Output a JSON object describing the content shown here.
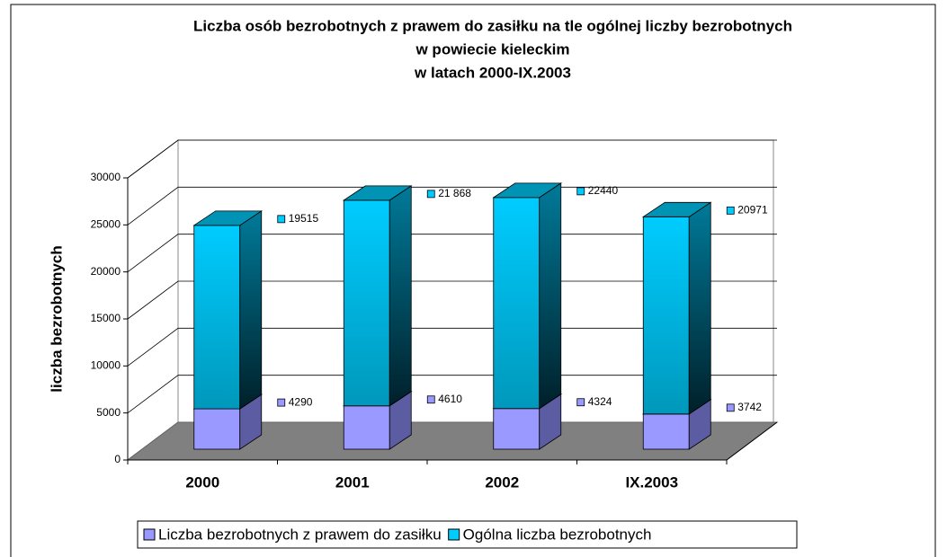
{
  "chart_data": {
    "type": "bar3d_stacked",
    "title": [
      "Liczba osób bezrobotnych z prawem do zasiłku na tle ogólnej liczby bezrobotnych",
      "w powiecie kieleckim",
      "w latach 2000-IX.2003"
    ],
    "y_label": "liczba bezrobotnych",
    "categories": [
      "2000",
      "2001",
      "2002",
      "IX.2003"
    ],
    "series": [
      {
        "name": "Liczba bezrobotnych z prawem do zasiłku",
        "color": "#9999ff",
        "values": [
          4290,
          4610,
          4324,
          3742
        ]
      },
      {
        "name": "Ogólna liczba bezrobotnych",
        "color": "#00ccff",
        "values": [
          19515,
          21868,
          22440,
          20971
        ],
        "value_labels": [
          "19515",
          "21 868",
          "22440",
          "20971"
        ]
      }
    ],
    "ylim": [
      0,
      30000
    ],
    "yticks": [
      0,
      5000,
      10000,
      15000,
      20000,
      25000,
      30000
    ],
    "grid": true,
    "legend": "bottom"
  }
}
